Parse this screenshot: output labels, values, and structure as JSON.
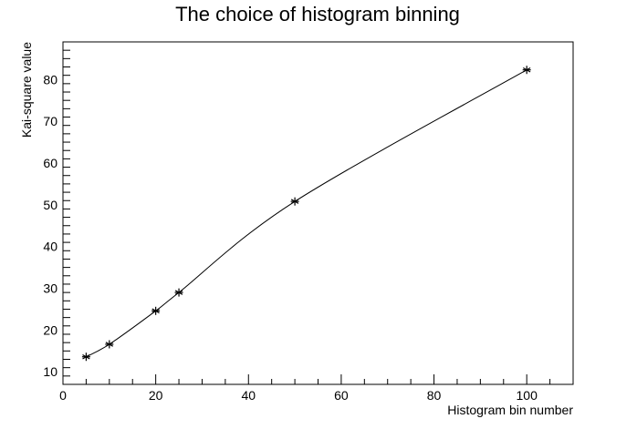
{
  "chart_data": {
    "type": "line",
    "title": "The choice of histogram binning",
    "xlabel": "Histogram bin number",
    "ylabel": "Kai-square value",
    "xlim": [
      0,
      110
    ],
    "ylim": [
      7,
      89
    ],
    "x_ticks": [
      0,
      20,
      40,
      60,
      80,
      100
    ],
    "y_ticks": [
      10,
      20,
      30,
      40,
      50,
      60,
      70,
      80
    ],
    "grid": false,
    "marker": "asterisk",
    "line_style": "smooth-curve",
    "series": [
      {
        "x": [
          5,
          10,
          20,
          25,
          50,
          100
        ],
        "y": [
          13.6,
          16.6,
          24.6,
          29.0,
          50.8,
          82.3
        ]
      }
    ]
  }
}
